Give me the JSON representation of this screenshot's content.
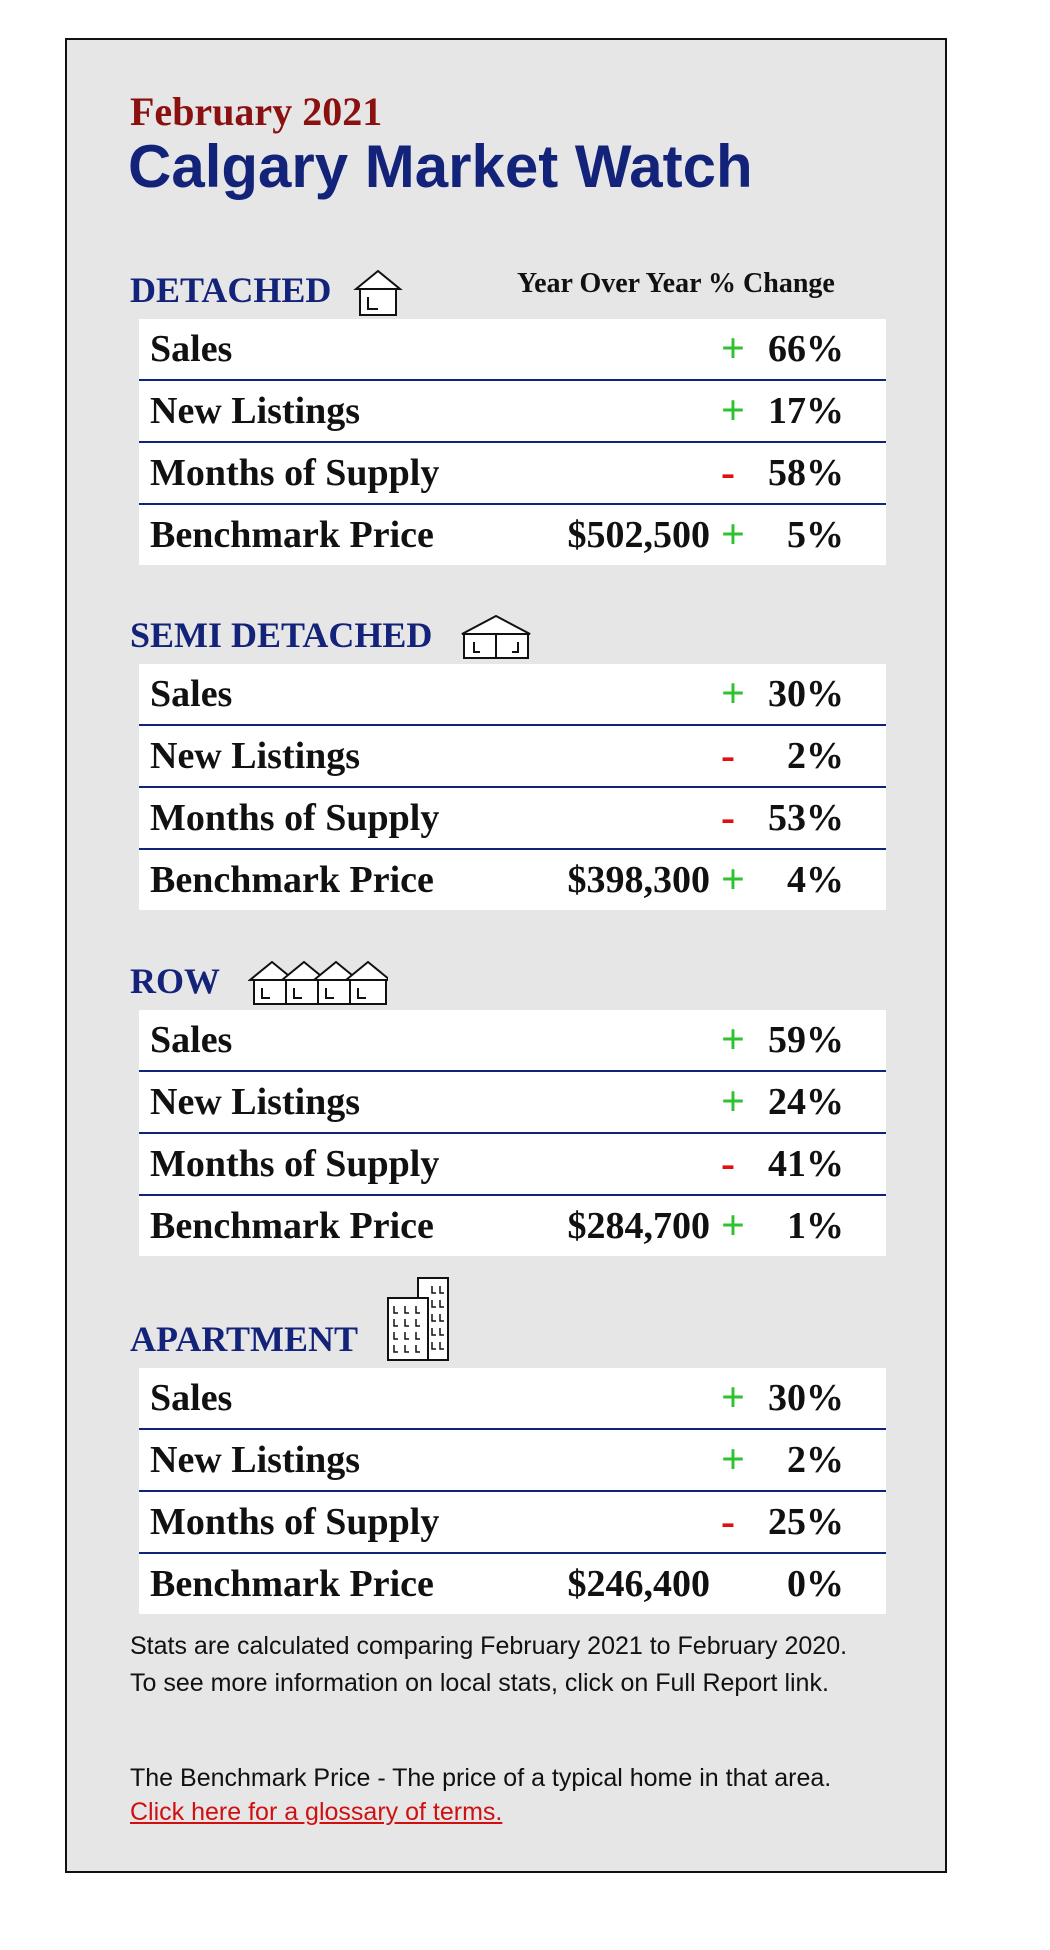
{
  "header": {
    "month": "February 2021",
    "title": "Calgary Market Watch",
    "column_header": "Year Over Year % Change"
  },
  "sections": [
    {
      "name": "DETACHED",
      "rows": [
        {
          "label": "Sales",
          "sign": "+",
          "value": "66%"
        },
        {
          "label": "New Listings",
          "sign": "+",
          "value": "17%"
        },
        {
          "label": "Months of Supply",
          "sign": "-",
          "value": "58%"
        },
        {
          "label": "Benchmark Price",
          "price": "$502,500",
          "sign": "+",
          "value": "5%"
        }
      ]
    },
    {
      "name": "SEMI DETACHED",
      "rows": [
        {
          "label": "Sales",
          "sign": "+",
          "value": "30%"
        },
        {
          "label": "New Listings",
          "sign": "-",
          "value": "2%"
        },
        {
          "label": "Months of Supply",
          "sign": "-",
          "value": "53%"
        },
        {
          "label": "Benchmark Price",
          "price": "$398,300",
          "sign": "+",
          "value": "4%"
        }
      ]
    },
    {
      "name": "ROW",
      "rows": [
        {
          "label": "Sales",
          "sign": "+",
          "value": "59%"
        },
        {
          "label": "New Listings",
          "sign": "+",
          "value": "24%"
        },
        {
          "label": "Months of Supply",
          "sign": "-",
          "value": "41%"
        },
        {
          "label": "Benchmark Price",
          "price": "$284,700",
          "sign": "+",
          "value": "1%"
        }
      ]
    },
    {
      "name": "APARTMENT",
      "rows": [
        {
          "label": "Sales",
          "sign": "+",
          "value": "30%"
        },
        {
          "label": "New Listings",
          "sign": "+",
          "value": "2%"
        },
        {
          "label": "Months of Supply",
          "sign": "-",
          "value": "25%"
        },
        {
          "label": "Benchmark Price",
          "price": "$246,400",
          "value": "0%"
        }
      ]
    }
  ],
  "footer": {
    "note": "Stats are calculated comparing February 2021 to February 2020. To see more information on local stats, click on Full Report link.",
    "definition": "The Benchmark Price - The price of a typical home in that area.",
    "link": "Click here for a glossary of terms."
  }
}
